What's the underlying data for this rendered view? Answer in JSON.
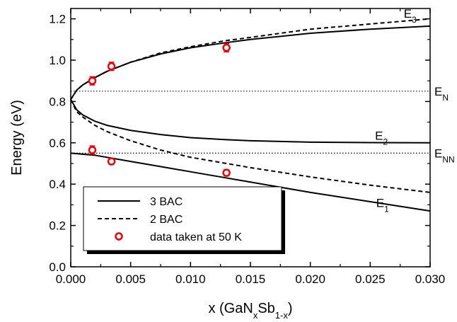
{
  "chart_data": {
    "type": "line",
    "xlabel": {
      "main": "x (GaN",
      "sub1": "x",
      "mid": "Sb",
      "sub2": "1-x",
      "end": ")"
    },
    "ylabel": "Energy (eV)",
    "xlim": [
      0.0,
      0.03
    ],
    "ylim": [
      0.0,
      1.25
    ],
    "x_ticks": [
      "0.000",
      "0.005",
      "0.010",
      "0.015",
      "0.020",
      "0.025",
      "0.030"
    ],
    "y_ticks": [
      "0.0",
      "0.2",
      "0.4",
      "0.6",
      "0.8",
      "1.0",
      "1.2"
    ],
    "reference_lines": [
      {
        "y": 0.85,
        "main": "E",
        "sub": "N"
      },
      {
        "y": 0.55,
        "main": "E",
        "sub": "NN"
      }
    ],
    "series": [
      {
        "label_main": "E",
        "label_sub": "3",
        "style": "solid",
        "x": [
          0,
          0.0005,
          0.001,
          0.002,
          0.003,
          0.005,
          0.0075,
          0.01,
          0.013,
          0.015,
          0.02,
          0.025,
          0.03
        ],
        "y": [
          0.81,
          0.855,
          0.88,
          0.915,
          0.945,
          0.99,
          1.03,
          1.06,
          1.085,
          1.1,
          1.13,
          1.15,
          1.165
        ]
      },
      {
        "label_main": "E",
        "label_sub": "2",
        "style": "solid",
        "x": [
          0,
          0.0005,
          0.001,
          0.002,
          0.003,
          0.005,
          0.0075,
          0.01,
          0.013,
          0.015,
          0.02,
          0.025,
          0.03
        ],
        "y": [
          0.81,
          0.76,
          0.735,
          0.705,
          0.685,
          0.66,
          0.64,
          0.625,
          0.615,
          0.61,
          0.603,
          0.601,
          0.6
        ]
      },
      {
        "label_main": "E",
        "label_sub": "1",
        "style": "solid",
        "x": [
          0,
          0.002,
          0.005,
          0.0075,
          0.01,
          0.013,
          0.015,
          0.02,
          0.025,
          0.03
        ],
        "y": [
          0.55,
          0.54,
          0.51,
          0.485,
          0.46,
          0.43,
          0.41,
          0.36,
          0.315,
          0.27
        ]
      },
      {
        "name": "2 BAC",
        "style": "dashed",
        "x": [
          0,
          0.0005,
          0.001,
          0.002,
          0.003,
          0.005,
          0.0075,
          0.01,
          0.013,
          0.015,
          0.02,
          0.025,
          0.03
        ],
        "y": [
          0.81,
          0.855,
          0.88,
          0.915,
          0.945,
          0.99,
          1.035,
          1.065,
          1.095,
          1.11,
          1.15,
          1.175,
          1.2
        ]
      },
      {
        "name": "2 BAC",
        "style": "dashed",
        "x": [
          0,
          0.0005,
          0.001,
          0.002,
          0.003,
          0.005,
          0.0075,
          0.01,
          0.012,
          0.015,
          0.02,
          0.025,
          0.03
        ],
        "y": [
          0.81,
          0.75,
          0.725,
          0.685,
          0.655,
          0.61,
          0.565,
          0.53,
          0.51,
          0.48,
          0.435,
          0.395,
          0.36
        ]
      }
    ],
    "points": {
      "name": "data taken at 50 K",
      "x": [
        0.0018,
        0.0034,
        0.013,
        0.0018,
        0.0034,
        0.013
      ],
      "y": [
        0.9,
        0.97,
        1.06,
        0.565,
        0.51,
        0.455
      ],
      "err": [
        0.02,
        0.02,
        0.02,
        0.02,
        0.015,
        0.015
      ]
    },
    "legend": {
      "position": "bottom-left",
      "entries": [
        {
          "label": "3 BAC",
          "style": "solid"
        },
        {
          "label": "2 BAC",
          "style": "dashed"
        },
        {
          "label": "data taken at 50 K",
          "style": "marker"
        }
      ]
    },
    "colors": {
      "line": "#000000",
      "marker": "#e8000b"
    }
  }
}
